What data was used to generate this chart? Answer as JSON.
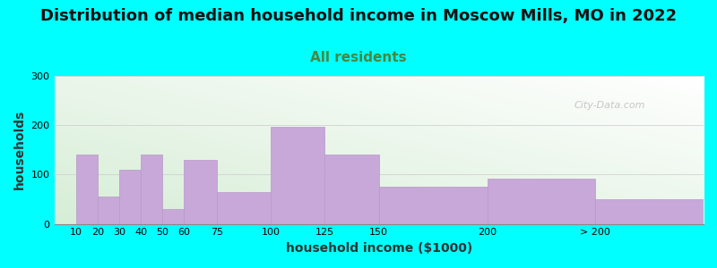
{
  "categories": [
    "10",
    "20",
    "30",
    "40",
    "50",
    "60",
    "75",
    "100",
    "125",
    "150",
    "200",
    "> 200"
  ],
  "values": [
    140,
    55,
    110,
    140,
    30,
    130,
    65,
    197,
    140,
    75,
    92,
    50
  ],
  "bar_positions": [
    10,
    20,
    30,
    40,
    50,
    60,
    75,
    100,
    125,
    150,
    200,
    250
  ],
  "bar_widths": [
    10,
    10,
    10,
    10,
    10,
    15,
    25,
    25,
    25,
    50,
    50,
    50
  ],
  "bar_color": "#c8a8d8",
  "bar_edgecolor": "#b898c8",
  "background_color": "#00FFFF",
  "title": "Distribution of median household income in Moscow Mills, MO in 2022",
  "subtitle": "All residents",
  "xlabel": "household income ($1000)",
  "ylabel": "households",
  "xlim": [
    0,
    300
  ],
  "ylim": [
    0,
    300
  ],
  "yticks": [
    0,
    100,
    200,
    300
  ],
  "xtick_positions": [
    10,
    20,
    30,
    40,
    50,
    60,
    75,
    100,
    125,
    150,
    200,
    250
  ],
  "xtick_labels": [
    "10",
    "20",
    "30",
    "40",
    "50",
    "60",
    "75",
    "100",
    "125",
    "150",
    "200",
    "> 200"
  ],
  "title_fontsize": 13,
  "subtitle_fontsize": 11,
  "subtitle_color": "#448844",
  "axis_label_fontsize": 10,
  "tick_fontsize": 8,
  "watermark": "City-Data.com"
}
